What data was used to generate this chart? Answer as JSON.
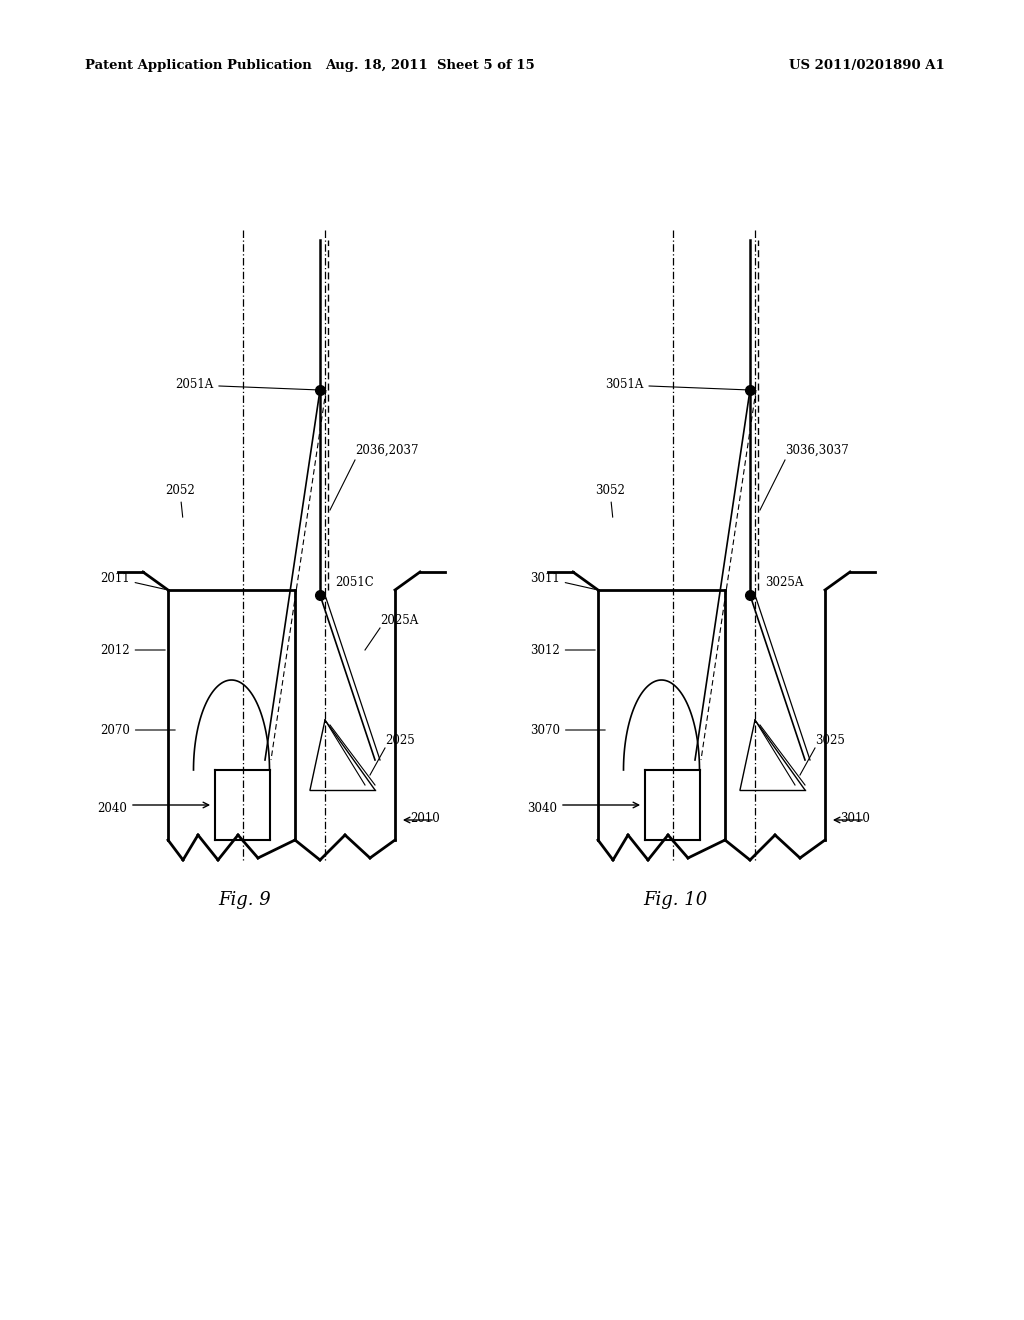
{
  "bg_color": "#ffffff",
  "header_left": "Patent Application Publication",
  "header_mid": "Aug. 18, 2011  Sheet 5 of 15",
  "header_right": "US 2011/0201890 A1",
  "fig9_title": "Fig. 9",
  "fig10_title": "Fig. 10"
}
